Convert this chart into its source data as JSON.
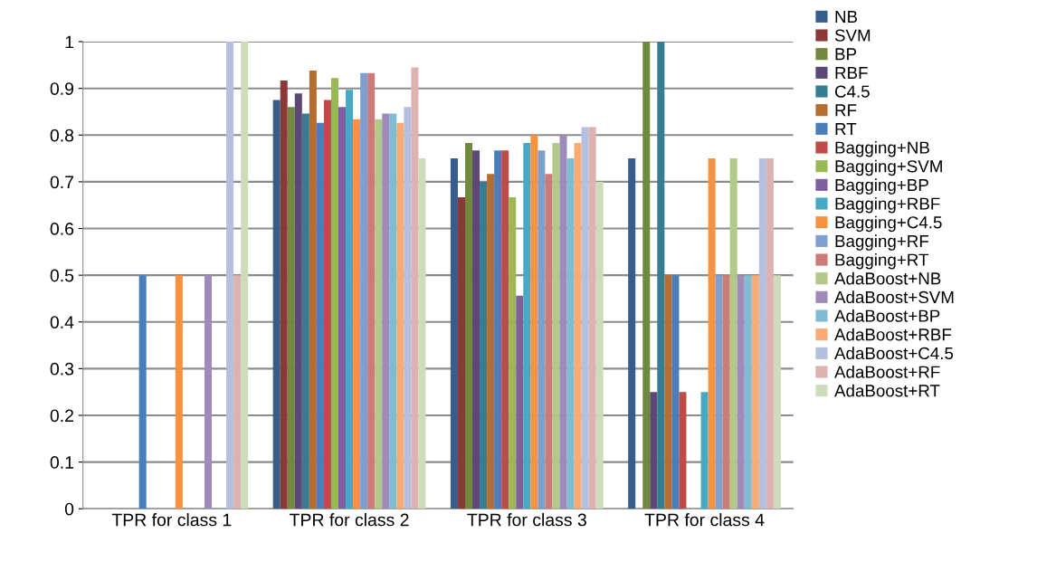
{
  "chart_data": {
    "type": "bar",
    "categories": [
      "TPR for class 1",
      "TPR for class 2",
      "TPR for class 3",
      "TPR for class 4"
    ],
    "ylim": [
      0,
      1
    ],
    "yticks": [
      0,
      0.1,
      0.2,
      0.3,
      0.4,
      0.5,
      0.6,
      0.7,
      0.8,
      0.9,
      1
    ],
    "grid": "y",
    "legend": "right",
    "series": [
      {
        "name": "NB",
        "color": "#385d8a",
        "values": [
          0,
          0.875,
          0.75,
          0.75
        ]
      },
      {
        "name": "SVM",
        "color": "#8c3836",
        "values": [
          0,
          0.917,
          0.667,
          0
        ]
      },
      {
        "name": "BP",
        "color": "#71893f",
        "values": [
          0,
          0.86,
          0.783,
          1
        ]
      },
      {
        "name": "RBF",
        "color": "#5c4776",
        "values": [
          0,
          0.889,
          0.767,
          0.25
        ]
      },
      {
        "name": "C4.5",
        "color": "#357d91",
        "values": [
          0,
          0.846,
          0.7,
          1
        ]
      },
      {
        "name": "RF",
        "color": "#b66d31",
        "values": [
          0,
          0.938,
          0.717,
          0.5
        ]
      },
      {
        "name": "RT",
        "color": "#4a7ebb",
        "values": [
          0.5,
          0.826,
          0.767,
          0.5
        ]
      },
      {
        "name": "Bagging+NB",
        "color": "#be4b48",
        "values": [
          0,
          0.875,
          0.767,
          0.25
        ]
      },
      {
        "name": "Bagging+SVM",
        "color": "#98b954",
        "values": [
          0,
          0.922,
          0.667,
          0
        ]
      },
      {
        "name": "Bagging+BP",
        "color": "#7d60a0",
        "values": [
          0,
          0.86,
          0.456,
          0
        ]
      },
      {
        "name": "Bagging+RBF",
        "color": "#46aac5",
        "values": [
          0,
          0.897,
          0.783,
          0.25
        ]
      },
      {
        "name": "Bagging+C4.5",
        "color": "#f69240",
        "values": [
          0.5,
          0.834,
          0.8,
          0.75
        ]
      },
      {
        "name": "Bagging+RF",
        "color": "#7f9fcf",
        "values": [
          0,
          0.933,
          0.767,
          0.5
        ]
      },
      {
        "name": "Bagging+RT",
        "color": "#cd7b79",
        "values": [
          0,
          0.933,
          0.717,
          0.5
        ]
      },
      {
        "name": "AdaBoost+NB",
        "color": "#b2c98a",
        "values": [
          0,
          0.834,
          0.783,
          0.75
        ]
      },
      {
        "name": "AdaBoost+SVM",
        "color": "#9e8bbb",
        "values": [
          0.5,
          0.846,
          0.8,
          0.5
        ]
      },
      {
        "name": "AdaBoost+BP",
        "color": "#7fbcd2",
        "values": [
          0,
          0.846,
          0.75,
          0.5
        ]
      },
      {
        "name": "AdaBoost+RBF",
        "color": "#f9ab73",
        "values": [
          0,
          0.826,
          0.783,
          0.5
        ]
      },
      {
        "name": "AdaBoost+C4.5",
        "color": "#b4c0de",
        "values": [
          1,
          0.86,
          0.817,
          0.75
        ]
      },
      {
        "name": "AdaBoost+RF",
        "color": "#ddb3b2",
        "values": [
          0.5,
          0.945,
          0.817,
          0.75
        ]
      },
      {
        "name": "AdaBoost+RT",
        "color": "#cfdcb9",
        "values": [
          1,
          0.75,
          0.7,
          0.5
        ]
      }
    ]
  }
}
